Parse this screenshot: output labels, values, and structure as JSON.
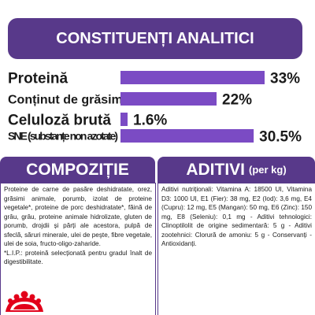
{
  "banner": {
    "title": "CONSTITUENȚI ANALITICI"
  },
  "chart_data": {
    "type": "bar",
    "orientation": "horizontal",
    "categories": [
      "Proteină",
      "Conținut de grăsimi",
      "Celuloză brută",
      "SNE (substanțe non azotate)"
    ],
    "values": [
      33,
      22,
      1.6,
      30.5
    ],
    "value_labels": [
      "33%",
      "22%",
      "1.6%",
      "30.5%"
    ],
    "colors": {
      "bar": "#7b4bc4",
      "header": "#58398a"
    }
  },
  "compozitie": {
    "title": "COMPOZIȚIE",
    "text": "Proteine de carne de pasăre deshidratate, orez, grăsimi animale, porumb, izolat de proteine vegetale*, proteine de porc deshidratate*, făină de grâu, grâu, proteine animale hidrolizate, gluten de porumb, drojdii și părți ale acestora, pulpă de sfeclă, săruri minerale, ulei de peşte, fibre vegetale, ulei de soia, fructo-oligo-zaharide.\n*L.I.P.: proteină selecționată pentru gradul înalt de digestibilitate."
  },
  "aditivi": {
    "title": "ADITIVI",
    "subtitle": "(per kg)",
    "text": "Aditivi nutriționali: Vitamina A: 18500 UI, Vitamina D3: 1000 UI, E1 (Fier): 38 mg, E2 (Iod): 3,6 mg, E4 (Cupru): 12 mg, E5 (Mangan): 50 mg, E6 (Zinc): 150 mg, E8 (Seleniu): 0,1 mg - Aditivi tehnologici: Clinoptilolit de origine sedimentară: 5 g - Aditivi zootehnici: Clorură de amoniu: 5 g - Conservanți - Antioxidanți."
  },
  "logo": {
    "name": "royal-canin-crown-logo"
  }
}
